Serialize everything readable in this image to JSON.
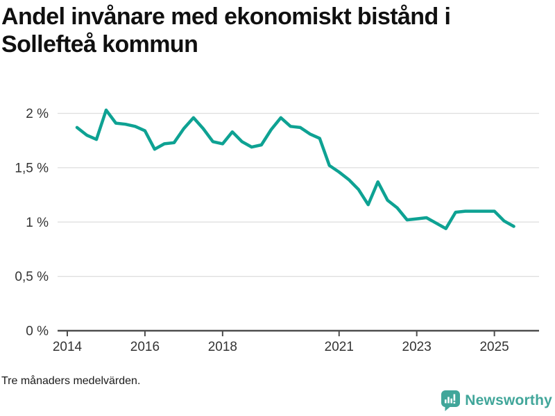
{
  "title": "Andel invånare med ekonomiskt bistånd i Sollefteå kommun",
  "footnote": "Tre månaders medelvärden.",
  "branding": {
    "logo_label": "Newsworthy",
    "logo_icon": "bar-chart-speech-bubble-icon"
  },
  "colors": {
    "line": "#0ea293",
    "grid": "#dddddd",
    "axis": "#4d4d4d",
    "tick_text": "#333333",
    "title_text": "#101010",
    "logo": "#41a69a",
    "logo_glyph": "#ffffff"
  },
  "chart_data": {
    "type": "line",
    "title": "Andel invånare med ekonomiskt bistånd i Sollefteå kommun",
    "series_name": "Andel invånare med ekonomiskt bistånd",
    "xlabel": "",
    "ylabel": "",
    "grid": true,
    "legend": "none",
    "xlim": [
      2013.75,
      2026.15
    ],
    "ylim": [
      0,
      2.15
    ],
    "xticks": [
      2014,
      2016,
      2018,
      2021,
      2023,
      2025
    ],
    "yticks": [
      {
        "value": 0,
        "label": "0 %"
      },
      {
        "value": 0.5,
        "label": "0,5 %"
      },
      {
        "value": 1,
        "label": "1 %"
      },
      {
        "value": 1.5,
        "label": "1,5 %"
      },
      {
        "value": 2,
        "label": "2 %"
      }
    ],
    "x": [
      2014.25,
      2014.5,
      2014.75,
      2015.0,
      2015.25,
      2015.5,
      2015.75,
      2016.0,
      2016.25,
      2016.5,
      2016.75,
      2017.0,
      2017.25,
      2017.5,
      2017.75,
      2018.0,
      2018.25,
      2018.5,
      2018.75,
      2019.0,
      2019.25,
      2019.5,
      2019.75,
      2020.0,
      2020.25,
      2020.5,
      2020.75,
      2021.0,
      2021.25,
      2021.5,
      2021.75,
      2022.0,
      2022.25,
      2022.5,
      2022.75,
      2023.0,
      2023.25,
      2023.5,
      2023.75,
      2024.0,
      2024.25,
      2024.5,
      2024.75,
      2025.0,
      2025.25,
      2025.5
    ],
    "values": [
      1.87,
      1.8,
      1.76,
      2.03,
      1.91,
      1.9,
      1.88,
      1.84,
      1.67,
      1.72,
      1.73,
      1.86,
      1.96,
      1.86,
      1.74,
      1.72,
      1.83,
      1.74,
      1.69,
      1.71,
      1.85,
      1.96,
      1.88,
      1.87,
      1.81,
      1.77,
      1.52,
      1.46,
      1.39,
      1.3,
      1.16,
      1.37,
      1.2,
      1.13,
      1.02,
      1.03,
      1.04,
      0.99,
      0.94,
      1.09,
      1.1,
      1.1,
      1.1,
      1.1,
      1.01,
      0.96
    ]
  }
}
